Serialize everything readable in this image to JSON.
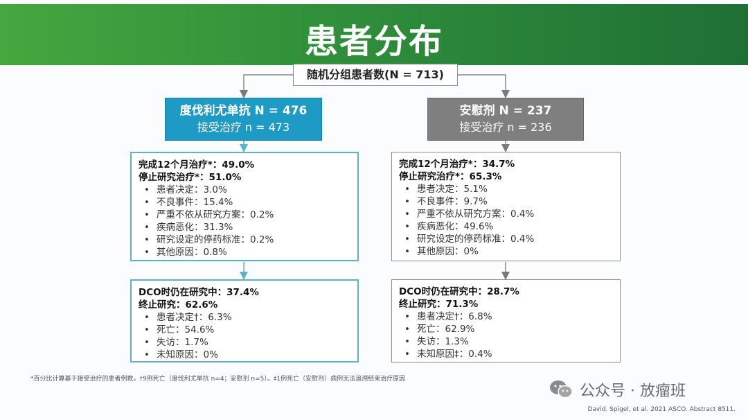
{
  "slide": {
    "title": "患者分布",
    "root": "随机分组患者数(N = 713)",
    "arms": [
      {
        "header_line1": "度伐利尤单抗 N = 476",
        "header_line2": "接受治疗 n = 473",
        "completed": "完成12个月治疗*：49.0%",
        "stopped": "停止研究治疗*：51.0%",
        "reasons": [
          "患者决定：3.0%",
          "不良事件：15.4%",
          "严重不依从研究方案：0.2%",
          "疾病恶化：31.3%",
          "研究设定的停药标准：0.2%",
          "其他原因：0.8%"
        ],
        "dco_ongoing": "DCO时仍在研究中：37.4%",
        "dco_terminated": "终止研究：62.6%",
        "termination_reasons": [
          "患者决定†：6.3%",
          "死亡：54.6%",
          "失访：1.7%",
          "未知原因：0%"
        ]
      },
      {
        "header_line1": "安慰剂 N = 237",
        "header_line2": "接受治疗 n = 236",
        "completed": "完成12个月治疗*：34.7%",
        "stopped": "停止研究治疗*：65.3%",
        "reasons": [
          "患者决定：5.1%",
          "不良事件：9.7%",
          "严重不依从研究方案：0.4%",
          "疾病恶化：49.6%",
          "研究设定的停药标准：0.4%",
          "其他原因：0%"
        ],
        "dco_ongoing": "DCO时仍在研究中：28.7%",
        "dco_terminated": "终止研究：71.3%",
        "termination_reasons": [
          "患者决定†：6.8%",
          "死亡：62.9%",
          "失访：1.3%",
          "未知原因‡：0.4%"
        ]
      }
    ],
    "footnote": "*百分比计算基于接受治疗的患者例数。†9例死亡（度伐利尤单抗 n=4；安慰剂 n=5）。‡1例死亡（安慰剂）病例无法追溯结束治疗原因",
    "citation": "David. Spigel, et al. 2021 ASCO. Abstract 8511.",
    "watermark": "公众号 · 放瘤班"
  },
  "colors": {
    "title_bar": "#2f8f3a",
    "arm_a": "#1d9bc4",
    "arm_b": "#7f7f7f"
  }
}
